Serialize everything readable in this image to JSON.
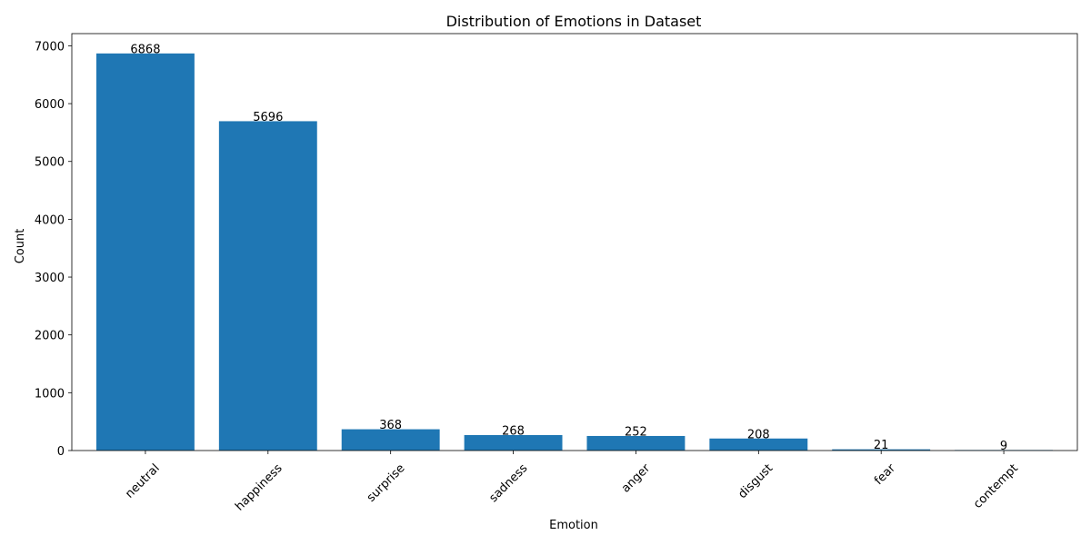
{
  "chart_data": {
    "type": "bar",
    "title": "Distribution of Emotions in Dataset",
    "xlabel": "Emotion",
    "ylabel": "Count",
    "categories": [
      "neutral",
      "happiness",
      "surprise",
      "sadness",
      "anger",
      "disgust",
      "fear",
      "contempt"
    ],
    "values": [
      6868,
      5696,
      368,
      268,
      252,
      208,
      21,
      9
    ],
    "ylim": [
      0,
      7211
    ],
    "yticks": [
      0,
      1000,
      2000,
      3000,
      4000,
      5000,
      6000,
      7000
    ],
    "grid": false,
    "legend": "none",
    "bar_color": "#1f77b4"
  }
}
